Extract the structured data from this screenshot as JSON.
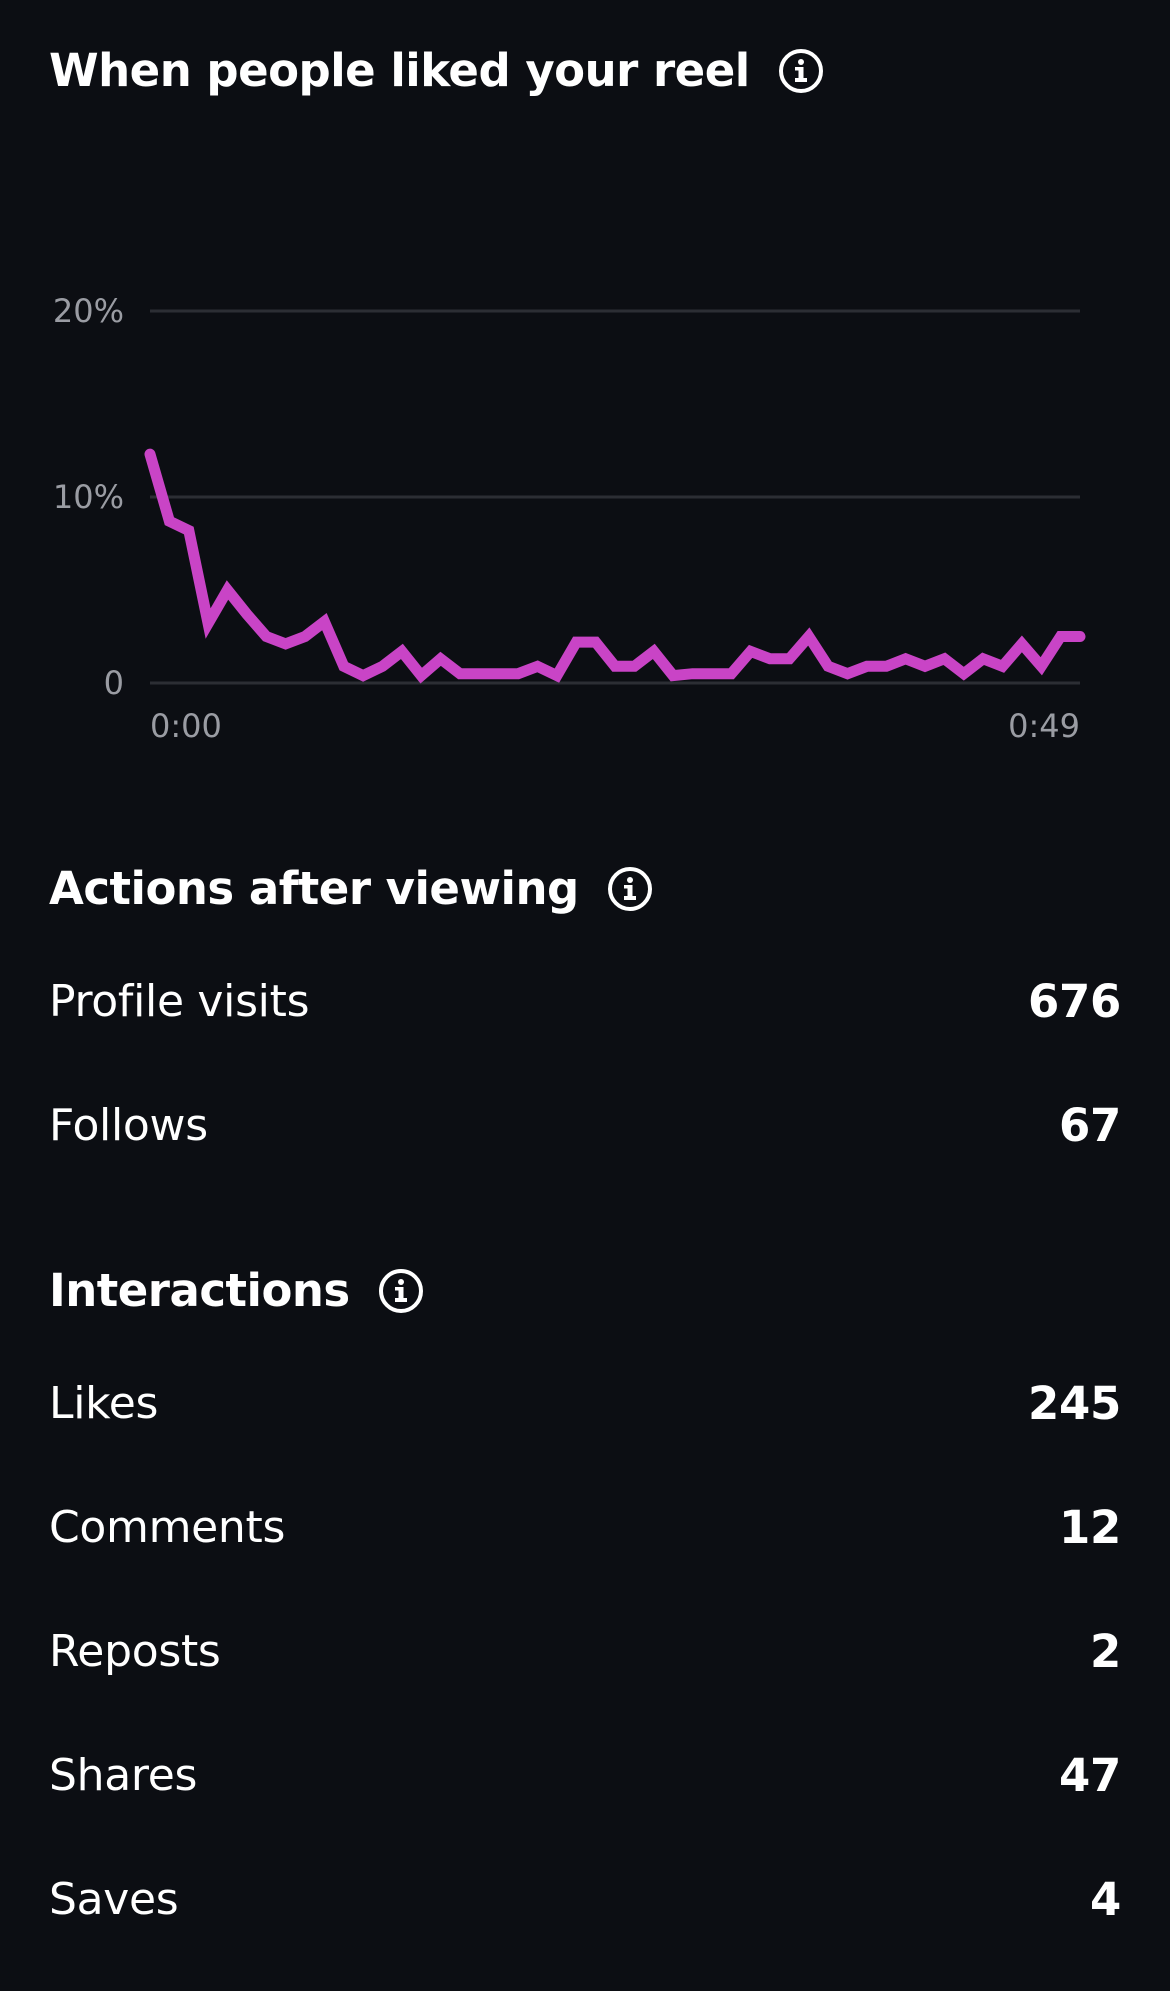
{
  "liked_section": {
    "title": "When people liked your reel",
    "icon": "info-icon"
  },
  "chart_data": {
    "type": "line",
    "title": "When people liked your reel",
    "xlabel": "",
    "ylabel": "",
    "x_tick_labels": [
      "0:00",
      "0:49"
    ],
    "y_tick_labels": [
      "0",
      "10%",
      "20%"
    ],
    "y_ticks": [
      0,
      10,
      20
    ],
    "ylim": [
      0,
      20
    ],
    "xlim": [
      0,
      49
    ],
    "grid": true,
    "series_color": "#c944c6",
    "series": [
      {
        "values": [
          12.3,
          8.7,
          8.2,
          3.2,
          5.0,
          3.7,
          2.5,
          2.1,
          2.5,
          3.3,
          0.9,
          0.4,
          0.9,
          1.7,
          0.4,
          1.3,
          0.5,
          0.5,
          0.5,
          0.5,
          0.9,
          0.4,
          2.2,
          2.2,
          0.9,
          0.9,
          1.7,
          0.4,
          0.5,
          0.5,
          0.5,
          1.7,
          1.3,
          1.3,
          2.5,
          0.9,
          0.5,
          0.9,
          0.9,
          1.3,
          0.9,
          1.3,
          0.5,
          1.3,
          0.9,
          2.1,
          0.9,
          2.5,
          2.5
        ]
      }
    ]
  },
  "actions_section": {
    "title": "Actions after viewing",
    "icon": "info-icon",
    "rows": [
      {
        "label": "Profile visits",
        "value": "676"
      },
      {
        "label": "Follows",
        "value": "67"
      }
    ]
  },
  "interactions_section": {
    "title": "Interactions",
    "icon": "info-icon",
    "rows": [
      {
        "label": "Likes",
        "value": "245"
      },
      {
        "label": "Comments",
        "value": "12"
      },
      {
        "label": "Reposts",
        "value": "2"
      },
      {
        "label": "Shares",
        "value": "47"
      },
      {
        "label": "Saves",
        "value": "4"
      }
    ]
  }
}
